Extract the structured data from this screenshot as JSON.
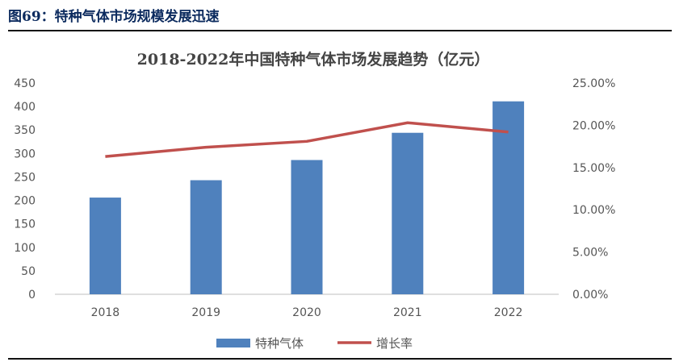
{
  "figure": {
    "caption": "图69：特种气体市场规模发展迅速"
  },
  "chart_data": {
    "type": "bar",
    "title": "2018-2022年中国特种气体市场发展趋势（亿元）",
    "categories": [
      "2018",
      "2019",
      "2020",
      "2021",
      "2022"
    ],
    "series": [
      {
        "name": "特种气体",
        "type": "bar",
        "axis": "left",
        "values": [
          206,
          243,
          286,
          344,
          411
        ],
        "color": "#4f81bd"
      },
      {
        "name": "增长率",
        "type": "line",
        "axis": "right",
        "values": [
          16.3,
          17.4,
          18.1,
          20.3,
          19.2
        ],
        "color": "#c0504d"
      }
    ],
    "y_left": {
      "min": 0,
      "max": 450,
      "ticks": [
        "0",
        "50",
        "100",
        "150",
        "200",
        "250",
        "300",
        "350",
        "400",
        "450"
      ]
    },
    "y_right": {
      "min": 0,
      "max": 25,
      "ticks": [
        "0.00%",
        "5.00%",
        "10.00%",
        "15.00%",
        "20.00%",
        "25.00%"
      ]
    },
    "grid": false,
    "legend": "bottom"
  }
}
